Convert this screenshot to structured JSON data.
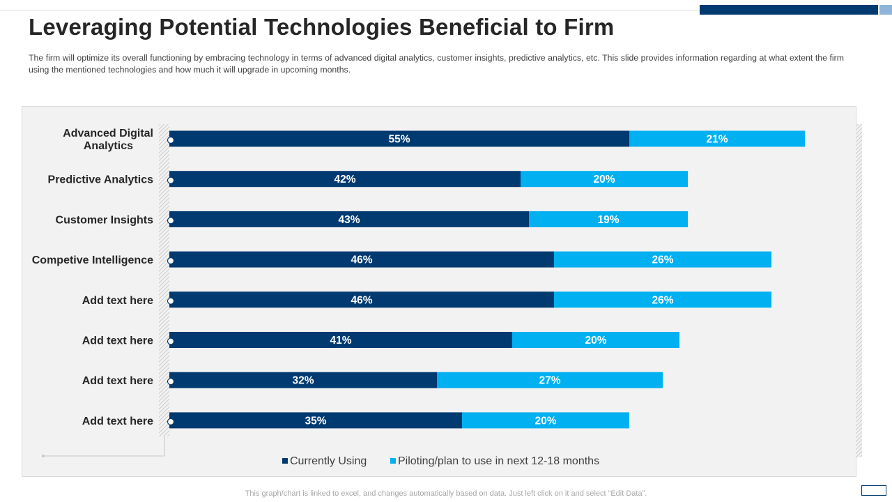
{
  "slide": {
    "title": "Leveraging Potential Technologies Beneficial to Firm",
    "description": "The firm will optimize its overall  functioning by embracing technology in terms of advanced  digital analytics, customer insights, predictive  analytics, etc. This slide provides  information  regarding  at what extent the firm using the mentioned technologies and how much it will upgrade  in upcoming months.",
    "footer": "This graph/chart is linked to excel,  and changes automatically based on data. Just left click on it and select “Edit Data”."
  },
  "colors": {
    "currently_using": "#003a70",
    "piloting": "#00b0f0",
    "title": "#262626",
    "panel_background": "#f2f2f2"
  },
  "chart_data": {
    "type": "bar",
    "orientation": "horizontal",
    "stacked": true,
    "categories": [
      "Advanced Digital Analytics",
      "Predictive Analytics",
      "Customer Insights",
      "Competive Intelligence",
      "Add text here",
      "Add text here",
      "Add text here",
      "Add text here"
    ],
    "series": [
      {
        "name": "Currently Using",
        "values": [
          55,
          42,
          43,
          46,
          46,
          41,
          32,
          35
        ],
        "labels": [
          "55%",
          "42%",
          "43%",
          "46%",
          "46%",
          "41%",
          "32%",
          "35%"
        ]
      },
      {
        "name": "Piloting/plan to use in next 12-18 months",
        "values": [
          21,
          20,
          19,
          26,
          26,
          20,
          27,
          20
        ],
        "labels": [
          "21%",
          "20%",
          "19%",
          "26%",
          "26%",
          "20%",
          "27%",
          "20%"
        ]
      }
    ],
    "legend_position": "bottom",
    "value_unit": "%",
    "xlim": [
      0,
      100
    ],
    "grid": false
  }
}
